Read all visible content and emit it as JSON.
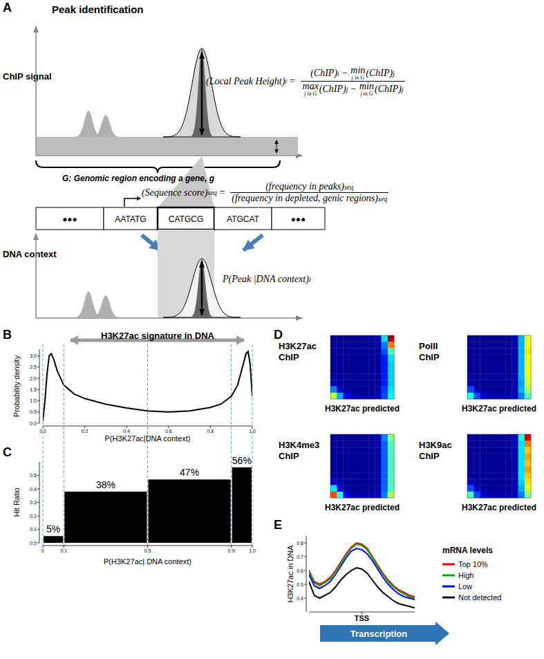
{
  "panel_labels": [
    "A",
    "B",
    "C",
    "D",
    "E"
  ],
  "diagram": {
    "title": "Peak identification",
    "chip_signal_label": "ChIP signal",
    "dna_context_label": "DNA context",
    "region_label": "G: Genomic region encoding a gene, g",
    "sequence": [
      "●●●",
      "AATATG",
      "CATGCG",
      "ATGCAT",
      "●●●"
    ],
    "formula_peak": {
      "lhs": [
        {
          "text": "(Local Peak Height)",
          "sub": "i"
        },
        {
          "text": "="
        }
      ],
      "num": [
        {
          "text": "(ChIP)",
          "sub": "i"
        },
        {
          "text": "−"
        },
        {
          "text": "min",
          "under": "j in G"
        },
        {
          "text": "(ChIP)",
          "sub": "j"
        }
      ],
      "den": [
        {
          "text": "max",
          "under": "j in G"
        },
        {
          "text": "(ChIP)",
          "sub": "j"
        },
        {
          "text": "−"
        },
        {
          "text": "min",
          "under": "j in G"
        },
        {
          "text": "(ChIP)",
          "sub": "j"
        }
      ]
    },
    "formula_sequence": {
      "lhs": [
        {
          "text": "(Sequence score)",
          "sub": "seq"
        },
        {
          "text": "="
        }
      ],
      "num": [
        {
          "text": "(frequency in peaks)",
          "sub": "seq"
        }
      ],
      "den": [
        {
          "text": "(frequency in depleted,  genic regions)",
          "sub": "seq"
        }
      ]
    },
    "formula_context": {
      "lhs": [
        {
          "text": "P(Peak |DNA context)",
          "sub": "i"
        }
      ]
    }
  },
  "chart_data": [
    {
      "type": "line",
      "annotation": "H3K27ac signature in DNA",
      "x_label": "P(H3K27ac|DNA context)",
      "y_label": "Probability density",
      "x": [
        0,
        0.01,
        0.02,
        0.03,
        0.04,
        0.05,
        0.07,
        0.1,
        0.15,
        0.2,
        0.3,
        0.4,
        0.5,
        0.6,
        0.7,
        0.8,
        0.85,
        0.9,
        0.93,
        0.95,
        0.97,
        0.98,
        0.99,
        1.0
      ],
      "values": [
        0.1,
        1.0,
        2.2,
        3.0,
        3.1,
        2.9,
        2.3,
        1.7,
        1.3,
        1.1,
        0.85,
        0.68,
        0.55,
        0.5,
        0.55,
        0.7,
        0.85,
        1.2,
        1.7,
        2.4,
        3.1,
        3.2,
        2.6,
        1.2
      ],
      "color": "#000000",
      "xlim": [
        0,
        1
      ],
      "ylim": [
        0,
        3.3
      ],
      "xticks": [
        {
          "value": 0,
          "label": "0.0"
        },
        0.2,
        0.4,
        0.6,
        0.8,
        {
          "value": 1,
          "label": "1.0"
        }
      ],
      "yticks": [
        {
          "value": 0,
          "label": "0.0"
        },
        0.5,
        {
          "value": 1,
          "label": "1.0"
        },
        1.5,
        {
          "value": 2,
          "label": "2.0"
        },
        2.5,
        {
          "value": 3,
          "label": "3.0"
        }
      ]
    },
    {
      "type": "histogram",
      "x_label": "P(H3K27ac| DNA context)",
      "y_label": "Hit Ratio",
      "bins": [
        0,
        0.1,
        0.5,
        0.9,
        1
      ],
      "values": [
        0.05,
        0.38,
        0.47,
        0.56
      ],
      "value_labels": [
        "5%",
        "38%",
        "47%",
        "56%"
      ],
      "data_labels": true,
      "color": "#000000",
      "xlim": [
        0,
        1
      ],
      "ylim": [
        0,
        0.6
      ],
      "xticks": [
        0,
        0.1,
        0.5,
        0.9,
        {
          "value": 1,
          "label": "1.0"
        }
      ],
      "yticks": [
        {
          "value": 0,
          "label": "0.0"
        },
        0.1,
        0.2,
        0.3,
        0.4,
        0.5
      ]
    },
    {
      "type": "heatmap",
      "y_label": "H3K27ac ChIP",
      "x_label": "H3K27ac predicted",
      "tick_labels": false,
      "zlim": [
        0,
        1
      ],
      "cells": [
        [
          0.02,
          0.02,
          0.02,
          0.02,
          0.02,
          0.02,
          0.03,
          0.05,
          0.35,
          0.95
        ],
        [
          0.02,
          0.02,
          0.02,
          0.02,
          0.02,
          0.02,
          0.02,
          0.04,
          0.25,
          0.75
        ],
        [
          0.02,
          0.02,
          0.02,
          0.02,
          0.02,
          0.02,
          0.02,
          0.03,
          0.2,
          0.45
        ],
        [
          0.02,
          0.02,
          0.02,
          0.02,
          0.02,
          0.02,
          0.02,
          0.03,
          0.15,
          0.35
        ],
        [
          0.02,
          0.02,
          0.02,
          0.02,
          0.02,
          0.02,
          0.02,
          0.03,
          0.15,
          0.33
        ],
        [
          0.02,
          0.02,
          0.02,
          0.02,
          0.02,
          0.02,
          0.02,
          0.03,
          0.15,
          0.33
        ],
        [
          0.03,
          0.02,
          0.02,
          0.02,
          0.02,
          0.02,
          0.02,
          0.03,
          0.15,
          0.33
        ],
        [
          0.05,
          0.03,
          0.02,
          0.02,
          0.02,
          0.02,
          0.02,
          0.03,
          0.15,
          0.33
        ],
        [
          0.25,
          0.08,
          0.03,
          0.02,
          0.02,
          0.02,
          0.02,
          0.04,
          0.18,
          0.35
        ],
        [
          0.55,
          0.3,
          0.1,
          0.05,
          0.04,
          0.04,
          0.04,
          0.06,
          0.2,
          0.38
        ]
      ]
    },
    {
      "type": "heatmap",
      "y_label": "PolII ChIP",
      "x_label": "H3K27ac predicted",
      "tick_labels": false,
      "zlim": [
        0,
        1
      ],
      "cells": [
        [
          0.02,
          0.02,
          0.02,
          0.02,
          0.02,
          0.02,
          0.02,
          0.05,
          0.3,
          0.6
        ],
        [
          0.02,
          0.02,
          0.02,
          0.02,
          0.02,
          0.02,
          0.02,
          0.04,
          0.3,
          0.62
        ],
        [
          0.02,
          0.02,
          0.02,
          0.02,
          0.02,
          0.02,
          0.02,
          0.04,
          0.3,
          0.65
        ],
        [
          0.02,
          0.02,
          0.02,
          0.02,
          0.02,
          0.02,
          0.02,
          0.04,
          0.3,
          0.62
        ],
        [
          0.02,
          0.02,
          0.02,
          0.02,
          0.02,
          0.02,
          0.02,
          0.04,
          0.3,
          0.6
        ],
        [
          0.02,
          0.02,
          0.02,
          0.02,
          0.02,
          0.02,
          0.02,
          0.04,
          0.3,
          0.63
        ],
        [
          0.03,
          0.02,
          0.02,
          0.02,
          0.02,
          0.02,
          0.02,
          0.04,
          0.3,
          0.6
        ],
        [
          0.05,
          0.03,
          0.02,
          0.02,
          0.02,
          0.02,
          0.02,
          0.04,
          0.28,
          0.58
        ],
        [
          0.2,
          0.06,
          0.03,
          0.02,
          0.02,
          0.02,
          0.02,
          0.05,
          0.3,
          0.55
        ],
        [
          0.4,
          0.2,
          0.08,
          0.04,
          0.04,
          0.04,
          0.04,
          0.05,
          0.25,
          0.45
        ]
      ]
    },
    {
      "type": "heatmap",
      "y_label": "H3K4me3 ChIP",
      "x_label": "H3K27ac predicted",
      "tick_labels": false,
      "zlim": [
        0,
        1
      ],
      "cells": [
        [
          0.02,
          0.02,
          0.02,
          0.02,
          0.02,
          0.02,
          0.02,
          0.05,
          0.25,
          0.5
        ],
        [
          0.02,
          0.02,
          0.02,
          0.02,
          0.02,
          0.02,
          0.02,
          0.04,
          0.22,
          0.45
        ],
        [
          0.02,
          0.02,
          0.02,
          0.02,
          0.02,
          0.02,
          0.02,
          0.04,
          0.22,
          0.45
        ],
        [
          0.02,
          0.02,
          0.02,
          0.02,
          0.02,
          0.02,
          0.02,
          0.04,
          0.22,
          0.45
        ],
        [
          0.02,
          0.02,
          0.02,
          0.02,
          0.02,
          0.02,
          0.02,
          0.04,
          0.22,
          0.45
        ],
        [
          0.02,
          0.02,
          0.02,
          0.02,
          0.02,
          0.02,
          0.02,
          0.04,
          0.22,
          0.45
        ],
        [
          0.03,
          0.02,
          0.02,
          0.02,
          0.02,
          0.02,
          0.02,
          0.04,
          0.22,
          0.45
        ],
        [
          0.08,
          0.04,
          0.02,
          0.02,
          0.02,
          0.02,
          0.02,
          0.04,
          0.22,
          0.45
        ],
        [
          0.35,
          0.1,
          0.03,
          0.02,
          0.02,
          0.02,
          0.02,
          0.04,
          0.22,
          0.45
        ],
        [
          0.8,
          0.4,
          0.12,
          0.05,
          0.04,
          0.04,
          0.04,
          0.06,
          0.25,
          0.55
        ]
      ]
    },
    {
      "type": "heatmap",
      "y_label": "H3K9ac ChIP",
      "x_label": "H3K27ac predicted",
      "tick_labels": false,
      "zlim": [
        0,
        1
      ],
      "cells": [
        [
          0.02,
          0.02,
          0.02,
          0.02,
          0.02,
          0.02,
          0.03,
          0.06,
          0.4,
          0.9
        ],
        [
          0.02,
          0.02,
          0.02,
          0.02,
          0.02,
          0.02,
          0.02,
          0.05,
          0.35,
          0.75
        ],
        [
          0.02,
          0.02,
          0.02,
          0.02,
          0.02,
          0.02,
          0.02,
          0.05,
          0.35,
          0.68
        ],
        [
          0.02,
          0.02,
          0.02,
          0.02,
          0.02,
          0.02,
          0.02,
          0.05,
          0.35,
          0.72
        ],
        [
          0.02,
          0.02,
          0.02,
          0.02,
          0.02,
          0.02,
          0.02,
          0.05,
          0.35,
          0.68
        ],
        [
          0.02,
          0.02,
          0.02,
          0.02,
          0.02,
          0.02,
          0.02,
          0.05,
          0.35,
          0.72
        ],
        [
          0.03,
          0.02,
          0.02,
          0.02,
          0.02,
          0.02,
          0.02,
          0.05,
          0.35,
          0.68
        ],
        [
          0.05,
          0.03,
          0.02,
          0.02,
          0.02,
          0.02,
          0.02,
          0.05,
          0.33,
          0.65
        ],
        [
          0.2,
          0.06,
          0.03,
          0.02,
          0.02,
          0.02,
          0.02,
          0.05,
          0.3,
          0.6
        ],
        [
          0.45,
          0.2,
          0.08,
          0.04,
          0.04,
          0.04,
          0.04,
          0.05,
          0.25,
          0.5
        ]
      ]
    },
    {
      "type": "line",
      "y_label": "H3K27ac in DNA",
      "annotation": "Transcription",
      "legend": "right",
      "legend_title": "mRNA levels",
      "x": [
        -10,
        -9,
        -8,
        -7,
        -6,
        -5,
        -4,
        -3,
        -2,
        -1,
        0,
        1,
        2,
        3,
        4,
        5,
        6,
        7,
        8,
        9,
        10
      ],
      "xlim": [
        -10,
        10
      ],
      "xticks": [
        {
          "value": 0,
          "label": "TSS"
        }
      ],
      "ylim": [
        0.3,
        0.85
      ],
      "yticks": [
        0.4,
        0.5,
        0.6,
        0.7,
        0.8
      ],
      "series": [
        {
          "name": "Top 10%",
          "color": "#ff0000",
          "values": [
            0.6,
            0.52,
            0.5,
            0.52,
            0.55,
            0.6,
            0.66,
            0.72,
            0.77,
            0.8,
            0.79,
            0.76,
            0.7,
            0.64,
            0.58,
            0.53,
            0.49,
            0.46,
            0.44,
            0.42,
            0.41
          ]
        },
        {
          "name": "High",
          "color": "#00b000",
          "values": [
            0.59,
            0.51,
            0.49,
            0.51,
            0.54,
            0.59,
            0.65,
            0.71,
            0.76,
            0.79,
            0.78,
            0.75,
            0.69,
            0.63,
            0.57,
            0.52,
            0.48,
            0.45,
            0.43,
            0.41,
            0.4
          ]
        },
        {
          "name": "Low",
          "color": "#0000ff",
          "values": [
            0.57,
            0.49,
            0.47,
            0.49,
            0.52,
            0.57,
            0.63,
            0.69,
            0.74,
            0.76,
            0.75,
            0.72,
            0.67,
            0.61,
            0.55,
            0.5,
            0.46,
            0.43,
            0.41,
            0.4,
            0.39
          ]
        },
        {
          "name": "Not detected",
          "color": "#000000",
          "values": [
            0.52,
            0.42,
            0.4,
            0.42,
            0.44,
            0.48,
            0.53,
            0.57,
            0.6,
            0.62,
            0.61,
            0.58,
            0.53,
            0.48,
            0.44,
            0.41,
            0.38,
            0.36,
            0.35,
            0.34,
            0.33
          ]
        }
      ]
    }
  ]
}
